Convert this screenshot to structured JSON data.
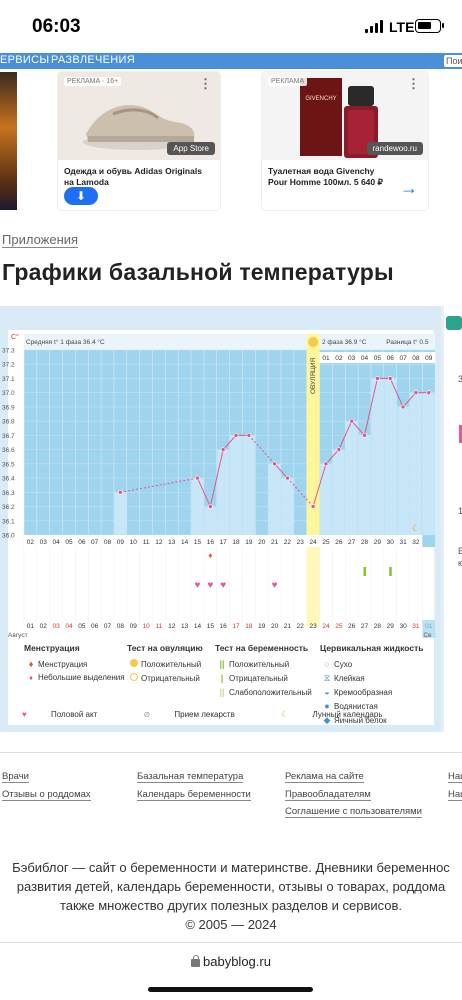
{
  "status_bar": {
    "time": "06:03",
    "network": "LTE"
  },
  "nav": {
    "items": [
      "ЕРВИСЫ",
      "РАЗВЛЕЧЕНИЯ"
    ],
    "search_placeholder": "Пои"
  },
  "ads": [
    {
      "tag": "РЕКЛАМА · 16+",
      "title": "Одежда и обувь Adidas Originals на Lamoda",
      "badge": "App Store"
    },
    {
      "tag": "РЕКЛАМА",
      "title": "Туалетная вода Givenchy Pour Homme 100мл. 5 640 ₽",
      "badge": "randewoo.ru",
      "brand": "GIVENCHY"
    }
  ],
  "breadcrumb": "Приложения",
  "page_title": "Графики базальной температуры",
  "chart_data": {
    "type": "line",
    "y_unit": "C°",
    "y_ticks": [
      "37.3",
      "37.2",
      "37.1",
      "37.0",
      "36.9",
      "36.8",
      "36.7",
      "36.6",
      "36.5",
      "36.4",
      "36.3",
      "36.2",
      "36.1",
      "36.0"
    ],
    "ylim": [
      36.0,
      37.3
    ],
    "phase1_label": "Средняя t° 1 фаза",
    "phase1_value": "36.4 °C",
    "phase2_label": "2 фаза",
    "phase2_value": "36.9 °C",
    "diff_label": "Разница t°",
    "diff_value": "0.5",
    "ovulation_label": "ОВУЛЯЦИЯ",
    "ovulation_day": "24",
    "cycle_days": [
      "02",
      "03",
      "04",
      "05",
      "06",
      "07",
      "08",
      "09",
      "10",
      "11",
      "12",
      "13",
      "14",
      "15",
      "16",
      "17",
      "18",
      "19",
      "20",
      "21",
      "22",
      "23",
      "24",
      "25",
      "26",
      "27",
      "28",
      "29",
      "30",
      "31",
      "32",
      "33"
    ],
    "phase2_days": [
      "01",
      "02",
      "03",
      "04",
      "05",
      "06",
      "07",
      "08",
      "09"
    ],
    "dates": [
      "01",
      "02",
      "03",
      "04",
      "05",
      "06",
      "07",
      "08",
      "09",
      "10",
      "11",
      "12",
      "13",
      "14",
      "15",
      "16",
      "17",
      "18",
      "19",
      "20",
      "21",
      "22",
      "23",
      "24",
      "25",
      "26",
      "27",
      "28",
      "29",
      "30",
      "31",
      "01"
    ],
    "weekend_dates": [
      "03",
      "04",
      "10",
      "11",
      "17",
      "18",
      "24",
      "25",
      "31"
    ],
    "month_start": "Август",
    "month_end": "Се",
    "series": [
      {
        "x": [
          "09",
          "15",
          "16",
          "17",
          "18",
          "19",
          "21",
          "22",
          "24",
          "25",
          "26",
          "27",
          "28",
          "29",
          "30",
          "31",
          "32",
          "33"
        ],
        "y": [
          36.3,
          36.4,
          36.2,
          36.6,
          36.7,
          36.7,
          36.5,
          36.4,
          36.2,
          36.5,
          36.6,
          36.8,
          36.7,
          37.1,
          37.1,
          36.9,
          37.0,
          37.0
        ]
      }
    ],
    "gaps_dashed_after": [
      "09",
      "19",
      "22"
    ],
    "markers": {
      "small_bleeding_day": "16",
      "intercourse_days": [
        "15",
        "16",
        "17",
        "21"
      ],
      "pregnancy_test_negative_days": [
        "28",
        "30"
      ],
      "lunar_calendar_day": "32"
    }
  },
  "legend": {
    "menstruation": {
      "title": "Менструация",
      "items": [
        "Менструация",
        "Небольшие выделения"
      ]
    },
    "ovulation_test": {
      "title": "Тест на овуляцию",
      "items": [
        "Положительный",
        "Отрицательный"
      ]
    },
    "pregnancy_test": {
      "title": "Тест на беременность",
      "items": [
        "Положительный",
        "Отрицательный",
        "Слабоположительный"
      ]
    },
    "cervical": {
      "title": "Цервикальная жидкость",
      "items": [
        "Сухо",
        "Клейкая",
        "Кремообразная",
        "Водянистая",
        "Яичный белок"
      ]
    },
    "bottom": [
      "Половой акт",
      "Прием лекарств",
      "Лунный календарь"
    ]
  },
  "side_panel": {
    "texts": [
      "3",
      "1",
      "В",
      "к"
    ]
  },
  "footer": {
    "links": [
      [
        "Врачи",
        "Отзывы о роддомах"
      ],
      [
        "Базальная температура",
        "Календарь беременности"
      ],
      [
        "Реклама на сайте",
        "Правообладателям",
        "Соглашение с пользователями"
      ],
      [
        "Наш",
        "Наш"
      ]
    ],
    "about": [
      "Бэбиблог — сайт о беременности и материнстве. Дневники беременнос",
      "развития детей, календарь беременности, отзывы о товарах, роддома",
      "также множество других полезных разделов и сервисов.",
      "© 2005 — 2024"
    ],
    "url": "babyblog.ru"
  },
  "colors": {
    "accent": "#4a90d9",
    "chart_sky": "#9fd4ef",
    "chart_bar": "#c7e7f8",
    "line": "#e0578f",
    "ovulation": "#fff59a"
  }
}
